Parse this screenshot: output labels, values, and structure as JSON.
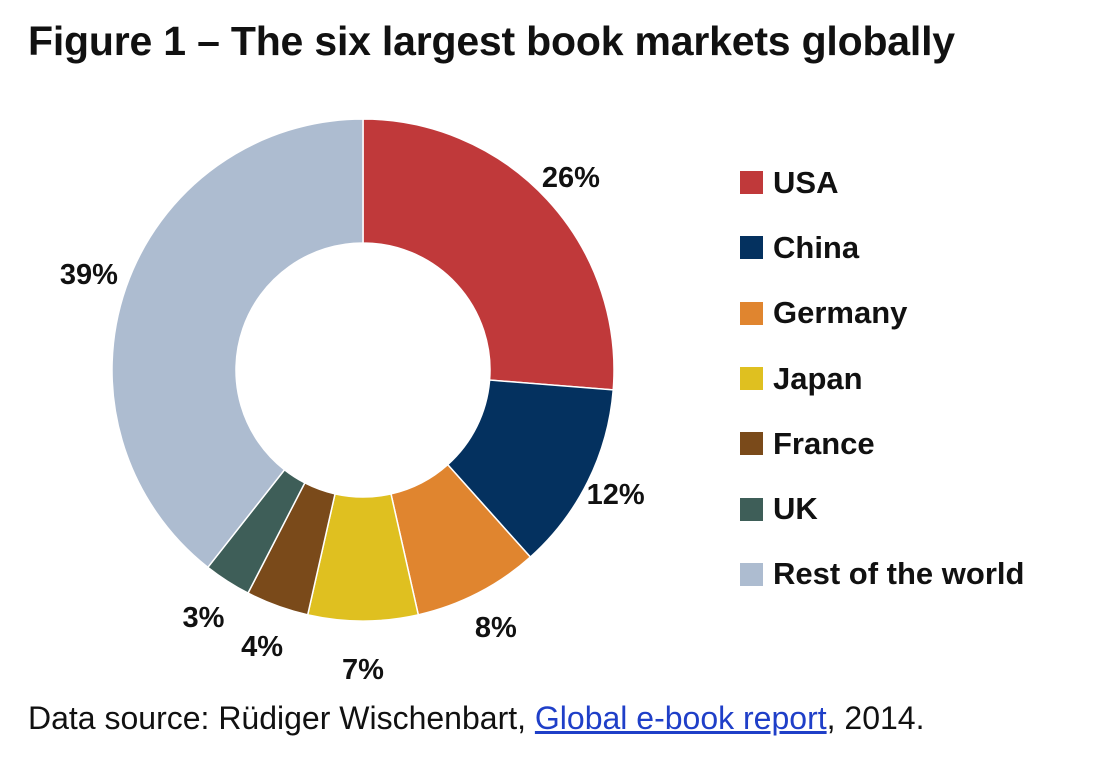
{
  "title": "Figure 1 – The six largest book markets globally",
  "chart_data": {
    "type": "pie",
    "donut": true,
    "categories": [
      "USA",
      "China",
      "Germany",
      "Japan",
      "France",
      "UK",
      "Rest of the world"
    ],
    "values": [
      26,
      12,
      8,
      7,
      4,
      3,
      39
    ],
    "data_labels": [
      "26%",
      "12%",
      "8%",
      "7%",
      "4%",
      "3%",
      "39%"
    ],
    "colors": [
      "#c0393a",
      "#04315f",
      "#e0852f",
      "#dfc020",
      "#7a4a1a",
      "#3e5e58",
      "#adbcd0"
    ],
    "legend_position": "right"
  },
  "source": {
    "prefix": "Data source: Rüdiger Wischenbart,",
    "link_text": "Global e-book report",
    "suffix": ", 2014."
  }
}
